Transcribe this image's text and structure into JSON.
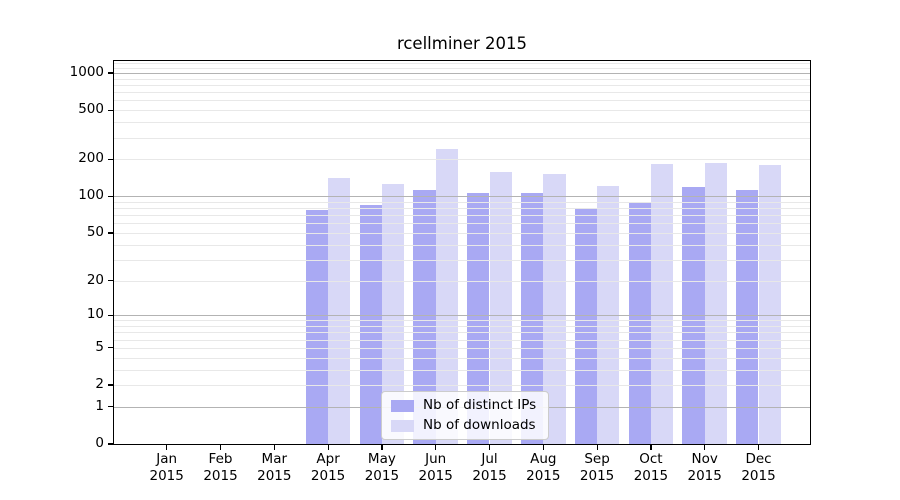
{
  "figure": {
    "title": "rcellminer 2015"
  },
  "chart_data": {
    "type": "bar",
    "title": "rcellminer 2015",
    "categories": [
      "Jan 2015",
      "Feb 2015",
      "Mar 2015",
      "Apr 2015",
      "May 2015",
      "Jun 2015",
      "Jul 2015",
      "Aug 2015",
      "Sep 2015",
      "Oct 2015",
      "Nov 2015",
      "Dec 2015"
    ],
    "series": [
      {
        "name": "Nb of distinct IPs",
        "color": "#a9a9f3",
        "values": [
          0,
          0,
          0,
          77,
          85,
          112,
          106,
          107,
          79,
          89,
          119,
          112
        ]
      },
      {
        "name": "Nb of downloads",
        "color": "#d8d8f7",
        "values": [
          0,
          0,
          0,
          140,
          125,
          242,
          156,
          152,
          122,
          182,
          186,
          178
        ]
      }
    ],
    "xlabel": "",
    "ylabel": "",
    "y_scale": "log1p",
    "y_ticks": [
      1000,
      500,
      200,
      100,
      50,
      20,
      10,
      5,
      2,
      1,
      0
    ],
    "y_tick_labels": [
      "1000",
      "500",
      "200",
      "100",
      "50",
      "20",
      "10",
      "5",
      "2",
      "1",
      "0"
    ],
    "y_max": 1250,
    "grid": {
      "horizontal": true,
      "major_at": [
        1,
        10,
        100,
        1000
      ],
      "minor": "2-9 per decade",
      "drawn_above_bars": true
    },
    "legend_position": "lower center"
  },
  "legend": {
    "items": [
      {
        "label": "Nb of distinct IPs",
        "color": "#a9a9f3"
      },
      {
        "label": "Nb of downloads",
        "color": "#d8d8f7"
      }
    ]
  },
  "colors": {
    "background": "#ffffff",
    "bar_distinct_ips": "#a9a9f3",
    "bar_downloads": "#d8d8f7",
    "major_grid": "#b3b3b3",
    "minor_grid": "#e8e8e8",
    "axis": "#000000",
    "text": "#000000"
  }
}
